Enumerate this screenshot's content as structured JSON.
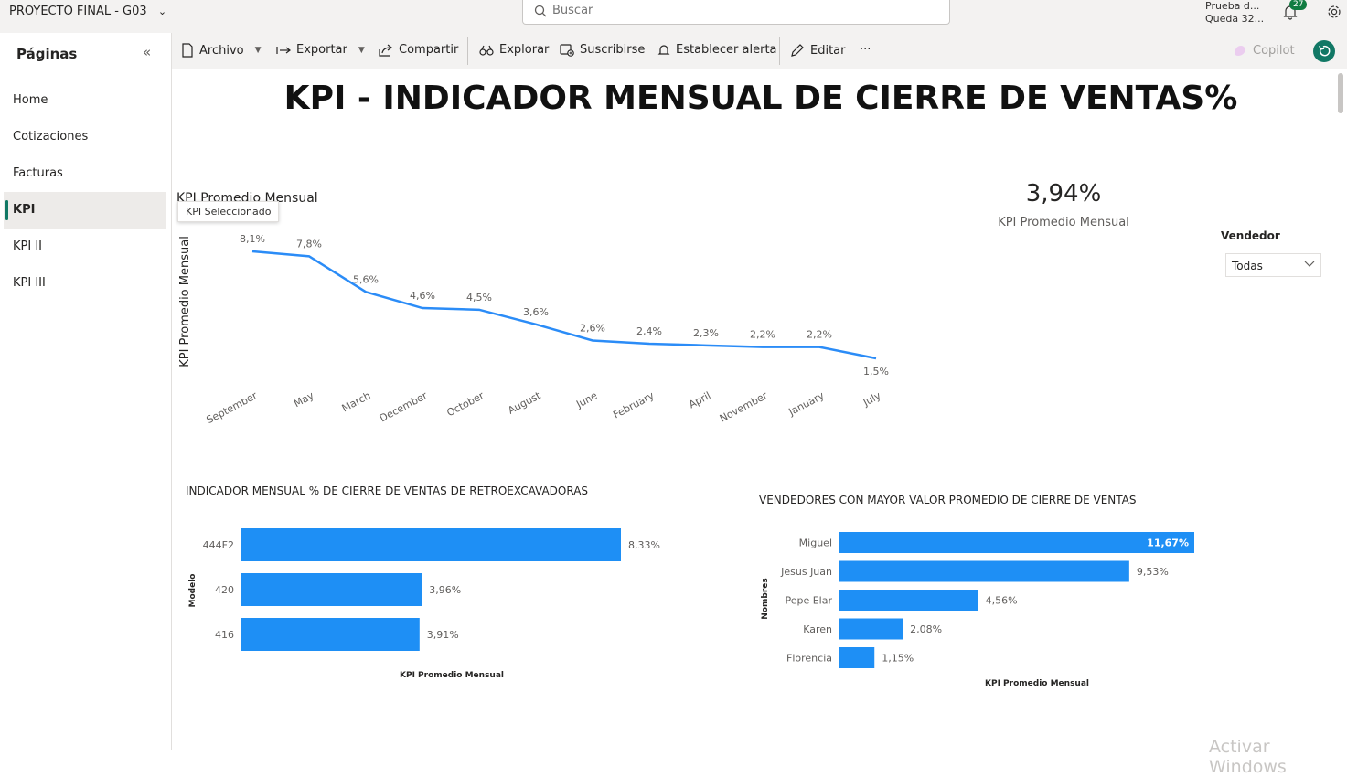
{
  "app": {
    "title": "PROYECTO FINAL - G03"
  },
  "search": {
    "placeholder": "Buscar"
  },
  "trial": {
    "line1": "Prueba d...",
    "line2": "Queda 32..."
  },
  "notifications": {
    "count": "27"
  },
  "sidebar": {
    "title": "Páginas",
    "items": [
      {
        "label": "Home"
      },
      {
        "label": "Cotizaciones"
      },
      {
        "label": "Facturas"
      },
      {
        "label": "KPI"
      },
      {
        "label": "KPI II"
      },
      {
        "label": "KPI III"
      }
    ],
    "tooltip": "KPI Seleccionado"
  },
  "toolbar": {
    "archivo": "Archivo",
    "exportar": "Exportar",
    "compartir": "Compartir",
    "explorar": "Explorar",
    "suscribirse": "Suscribirse",
    "alerta": "Establecer alerta",
    "editar": "Editar",
    "more": "···",
    "copilot": "Copilot"
  },
  "report": {
    "title": "KPI - INDICADOR MENSUAL DE CIERRE DE VENTAS%",
    "card": {
      "value": "3,94%",
      "label": "KPI Promedio Mensual"
    },
    "slicer": {
      "title": "Vendedor",
      "value": "Todas"
    },
    "watermark": "Activar Windows"
  },
  "colors": {
    "accent": "#2B8CF7",
    "brand": "#117865",
    "bar": "#1E8FF5"
  },
  "chart_data": [
    {
      "type": "line",
      "title": "KPI Promedio Mensual",
      "ylabel": "KPI Promedio Mensual",
      "xlabel": "",
      "categories": [
        "September",
        "May",
        "March",
        "December",
        "October",
        "August",
        "June",
        "February",
        "April",
        "November",
        "January",
        "July"
      ],
      "values": [
        8.1,
        7.8,
        5.6,
        4.6,
        4.5,
        3.6,
        2.6,
        2.4,
        2.3,
        2.2,
        2.2,
        1.5
      ],
      "labels": [
        "8,1%",
        "7,8%",
        "5,6%",
        "4,6%",
        "4,5%",
        "3,6%",
        "2,6%",
        "2,4%",
        "2,3%",
        "2,2%",
        "2,2%",
        "1,5%"
      ],
      "grid": false
    },
    {
      "type": "bar",
      "orientation": "horizontal",
      "title": "INDICADOR MENSUAL % DE CIERRE DE VENTAS DE RETROEXCAVADORAS",
      "ylabel": "Modelo",
      "xlabel": "KPI Promedio Mensual",
      "categories": [
        "444F2",
        "420",
        "416"
      ],
      "values": [
        8.33,
        3.96,
        3.91
      ],
      "labels": [
        "8,33%",
        "3,96%",
        "3,91%"
      ]
    },
    {
      "type": "bar",
      "orientation": "horizontal",
      "title": "VENDEDORES CON MAYOR VALOR PROMEDIO DE CIERRE DE VENTAS",
      "ylabel": "Nombres",
      "xlabel": "KPI Promedio Mensual",
      "categories": [
        "Miguel",
        "Jesus Juan",
        "Pepe Elar",
        "Karen",
        "Florencia"
      ],
      "values": [
        11.67,
        9.53,
        4.56,
        2.08,
        1.15
      ],
      "labels": [
        "11,67%",
        "9,53%",
        "4,56%",
        "2,08%",
        "1,15%"
      ]
    }
  ]
}
